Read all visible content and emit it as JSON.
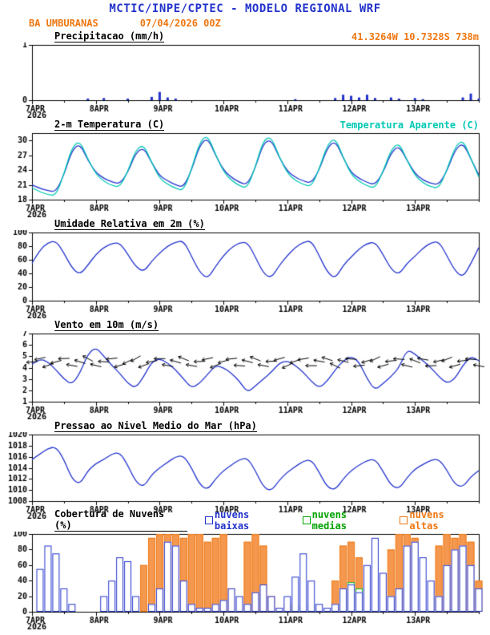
{
  "header": {
    "title": "MCTIC/INPE/CPTEC - MODELO REGIONAL WRF",
    "station": "BA UMBURANAS",
    "run": "07/04/2026 00Z",
    "coords": "41.3264W 10.7328S 738m"
  },
  "colors": {
    "header_blue": "#2233cc",
    "orange": "#ee7711",
    "line_blue": "#2233cc",
    "cyan": "#00c8b4",
    "green": "#00a300",
    "axis": "#000000"
  },
  "time": {
    "start": 0,
    "end": 168,
    "step_hours": 3,
    "minor_tick_hours": 12,
    "labels": [
      {
        "t": 0,
        "label": "7APR",
        "year": "2026"
      },
      {
        "t": 24,
        "label": "8APR"
      },
      {
        "t": 48,
        "label": "9APR"
      },
      {
        "t": 72,
        "label": "10APR"
      },
      {
        "t": 96,
        "label": "11APR"
      },
      {
        "t": 120,
        "label": "12APR"
      },
      {
        "t": 144,
        "label": "13APR"
      }
    ]
  },
  "chart_data": [
    {
      "id": "precipitation",
      "type": "bar",
      "title": "Precipitacao (mm/h)",
      "ylim": [
        0,
        1
      ],
      "yticks": [
        0,
        1
      ],
      "series": [
        {
          "name": "precipitacao",
          "color": "#2233cc",
          "values": [
            0,
            0,
            0,
            0,
            0,
            0,
            0,
            0.03,
            0,
            0.04,
            0,
            0,
            0.03,
            0,
            0,
            0.06,
            0.15,
            0.05,
            0.03,
            0,
            0,
            0,
            0,
            0,
            0,
            0,
            0,
            0,
            0,
            0,
            0,
            0,
            0,
            0.02,
            0,
            0,
            0,
            0,
            0.04,
            0.1,
            0.08,
            0.05,
            0.1,
            0.04,
            0,
            0.05,
            0.03,
            0,
            0.04,
            0.02,
            0,
            0,
            0,
            0,
            0.05,
            0.12,
            0.03
          ]
        }
      ]
    },
    {
      "id": "temperature",
      "type": "line",
      "title": "2-m Temperatura (C)",
      "right_label": "Temperatura Aparente (C)",
      "ylim": [
        18,
        31.5
      ],
      "yticks": [
        18,
        21,
        24,
        27,
        30
      ],
      "series": [
        {
          "name": "2-m temperatura",
          "color": "#2233cc",
          "values": [
            21.0,
            20.3,
            19.8,
            19.6,
            23.0,
            28.0,
            29.4,
            26.0,
            23.5,
            22.3,
            21.6,
            21.2,
            23.5,
            27.5,
            28.6,
            25.5,
            22.8,
            21.8,
            21.0,
            20.5,
            24.0,
            29.0,
            30.6,
            27.0,
            24.0,
            22.5,
            21.5,
            21.0,
            24.5,
            29.5,
            30.2,
            26.5,
            23.8,
            22.5,
            21.8,
            21.3,
            24.0,
            28.5,
            30.0,
            26.5,
            23.5,
            22.3,
            21.5,
            21.0,
            23.5,
            27.5,
            29.0,
            26.0,
            23.3,
            22.0,
            21.3,
            21.0,
            23.8,
            28.0,
            29.6,
            26.3,
            23.0
          ]
        },
        {
          "name": "temperatura aparente",
          "color": "#00c8b4",
          "values": [
            20.4,
            19.6,
            19.0,
            18.8,
            23.2,
            28.6,
            30.0,
            26.2,
            23.2,
            21.7,
            20.9,
            20.5,
            23.7,
            28.1,
            29.2,
            25.5,
            22.3,
            21.1,
            20.3,
            19.8,
            24.2,
            29.6,
            31.2,
            27.2,
            23.7,
            21.9,
            20.8,
            20.3,
            24.7,
            30.1,
            30.8,
            26.6,
            23.4,
            21.9,
            21.1,
            20.6,
            24.2,
            29.1,
            30.6,
            26.6,
            23.1,
            21.7,
            20.8,
            20.3,
            23.7,
            28.1,
            29.6,
            26.0,
            22.9,
            21.4,
            20.6,
            20.3,
            24.0,
            28.6,
            30.2,
            26.4,
            22.6
          ]
        }
      ]
    },
    {
      "id": "humidity",
      "type": "line",
      "title": "Umidade Relativa em 2m (%)",
      "ylim": [
        0,
        100
      ],
      "yticks": [
        0,
        20,
        40,
        60,
        80,
        100
      ],
      "series": [
        {
          "name": "umidade relativa",
          "color": "#2233cc",
          "values": [
            55,
            75,
            85,
            88,
            70,
            48,
            38,
            52,
            68,
            78,
            84,
            85,
            68,
            50,
            42,
            58,
            70,
            80,
            86,
            88,
            65,
            42,
            32,
            50,
            66,
            78,
            85,
            86,
            64,
            40,
            33,
            52,
            66,
            78,
            86,
            88,
            66,
            42,
            32,
            52,
            64,
            76,
            84,
            86,
            68,
            46,
            38,
            55,
            65,
            77,
            85,
            87,
            66,
            44,
            34,
            54,
            78
          ]
        }
      ]
    },
    {
      "id": "wind",
      "type": "wind",
      "title": "Vento em 10m (m/s)",
      "ylim": [
        1,
        7
      ],
      "yticks": [
        1,
        2,
        3,
        4,
        5,
        6,
        7
      ],
      "series": [
        {
          "name": "velocidade do vento",
          "color": "#2233cc",
          "values": [
            4.3,
            4.8,
            4.5,
            3.8,
            3.0,
            2.5,
            3.5,
            5.2,
            5.8,
            5.0,
            4.2,
            3.5,
            2.6,
            2.2,
            3.2,
            4.5,
            4.8,
            4.4,
            3.8,
            3.0,
            2.2,
            2.6,
            3.4,
            4.2,
            4.0,
            3.5,
            2.8,
            1.8,
            2.4,
            3.0,
            3.6,
            4.4,
            4.6,
            4.2,
            3.6,
            2.8,
            2.2,
            2.8,
            3.8,
            4.6,
            5.0,
            4.5,
            3.0,
            2.0,
            2.6,
            3.2,
            4.0,
            5.6,
            5.2,
            4.6,
            4.0,
            3.2,
            2.6,
            3.0,
            4.2,
            5.0,
            4.6
          ]
        }
      ],
      "barbs": {
        "name": "direcao do vento",
        "color": "#000000",
        "anchor": 4.5,
        "angles_deg": [
          185,
          192,
          200,
          195,
          182,
          170,
          162,
          152,
          166,
          176,
          186,
          196,
          206,
          210,
          200,
          190,
          180,
          170,
          164,
          158,
          170,
          182,
          192,
          202,
          196,
          186,
          176,
          166,
          158,
          170,
          182,
          196,
          206,
          200,
          190,
          180,
          170,
          162,
          154,
          166,
          176,
          186,
          196,
          206,
          196,
          186,
          176,
          166,
          158,
          170,
          182,
          192,
          202,
          196,
          186,
          176,
          170
        ]
      }
    },
    {
      "id": "pressure",
      "type": "line",
      "title": "Pressao ao Nivel Medio do Mar (hPa)",
      "ylim": [
        1008,
        1020
      ],
      "yticks": [
        1008,
        1010,
        1012,
        1014,
        1016,
        1018,
        1020
      ],
      "series": [
        {
          "name": "pressao",
          "color": "#2233cc",
          "values": [
            1015.5,
            1016.5,
            1017.5,
            1017.8,
            1015.5,
            1012.0,
            1011.0,
            1013.5,
            1014.8,
            1015.5,
            1016.5,
            1016.8,
            1014.5,
            1011.5,
            1010.5,
            1012.8,
            1014.0,
            1015.0,
            1016.0,
            1016.2,
            1014.0,
            1011.0,
            1010.0,
            1012.0,
            1013.5,
            1014.5,
            1015.5,
            1015.8,
            1013.5,
            1010.5,
            1009.8,
            1011.8,
            1013.2,
            1014.2,
            1015.2,
            1015.5,
            1013.2,
            1010.5,
            1010.0,
            1012.0,
            1013.5,
            1014.5,
            1015.3,
            1015.6,
            1013.4,
            1010.8,
            1010.2,
            1012.2,
            1013.8,
            1014.6,
            1015.4,
            1015.6,
            1013.6,
            1011.0,
            1010.5,
            1012.4,
            1013.5
          ]
        }
      ]
    },
    {
      "id": "clouds",
      "type": "cloudbar",
      "title": "Cobertura de Nuvens (%)",
      "ylim": [
        0,
        100
      ],
      "yticks": [
        0,
        20,
        40,
        60,
        80,
        100
      ],
      "legend": [
        {
          "label": "nuvens baixas",
          "color": "#2233cc"
        },
        {
          "label": "nuvens medias",
          "color": "#00a300"
        },
        {
          "label": "nuvens altas",
          "color": "#ee7711"
        }
      ],
      "series": [
        {
          "name": "nuvens altas",
          "color": "#ee7711",
          "fill": "#f5984f",
          "values": [
            0,
            0,
            0,
            0,
            0,
            0,
            0,
            0,
            0,
            0,
            0,
            0,
            0,
            0,
            60,
            95,
            100,
            100,
            100,
            95,
            100,
            100,
            90,
            95,
            100,
            30,
            0,
            90,
            100,
            85,
            20,
            0,
            10,
            0,
            0,
            0,
            0,
            0,
            40,
            85,
            90,
            70,
            30,
            0,
            0,
            80,
            100,
            100,
            95,
            0,
            0,
            85,
            100,
            95,
            100,
            90,
            40
          ]
        },
        {
          "name": "nuvens medias",
          "color": "#00a300",
          "values": [
            0,
            0,
            0,
            0,
            0,
            0,
            0,
            0,
            0,
            0,
            0,
            0,
            0,
            0,
            0,
            0,
            0,
            12,
            0,
            5,
            0,
            0,
            0,
            0,
            0,
            0,
            0,
            0,
            0,
            0,
            0,
            0,
            0,
            8,
            0,
            10,
            0,
            0,
            0,
            15,
            38,
            30,
            12,
            0,
            0,
            0,
            0,
            0,
            0,
            0,
            0,
            0,
            0,
            5,
            0,
            0,
            0
          ]
        },
        {
          "name": "nuvens baixas",
          "color": "#2233cc",
          "values": [
            0,
            55,
            85,
            75,
            30,
            10,
            0,
            0,
            0,
            20,
            40,
            70,
            65,
            20,
            0,
            10,
            30,
            90,
            85,
            40,
            10,
            5,
            5,
            10,
            15,
            30,
            20,
            10,
            25,
            35,
            20,
            5,
            20,
            45,
            75,
            40,
            10,
            5,
            10,
            30,
            35,
            25,
            60,
            95,
            50,
            20,
            30,
            85,
            90,
            70,
            40,
            20,
            60,
            80,
            85,
            60,
            30
          ]
        }
      ]
    }
  ]
}
